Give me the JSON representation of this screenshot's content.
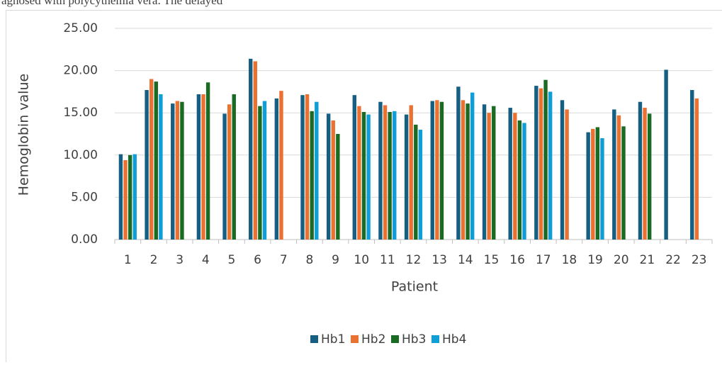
{
  "page_text": "agnosed with polycythemia vera. The delayed",
  "chart_data": {
    "type": "bar",
    "categories": [
      "1",
      "2",
      "3",
      "4",
      "5",
      "6",
      "7",
      "8",
      "9",
      "10",
      "11",
      "12",
      "13",
      "14",
      "15",
      "16",
      "17",
      "18",
      "19",
      "20",
      "21",
      "22",
      "23"
    ],
    "series": [
      {
        "name": "Hb1",
        "color": "#156082",
        "values": [
          10.1,
          17.7,
          16.1,
          17.2,
          14.9,
          21.4,
          16.7,
          17.1,
          14.9,
          17.1,
          16.3,
          14.8,
          16.4,
          18.1,
          16.0,
          15.6,
          18.2,
          16.5,
          12.7,
          15.4,
          16.3,
          20.1,
          17.7
        ]
      },
      {
        "name": "Hb2",
        "color": "#e97132",
        "values": [
          9.4,
          19.0,
          16.4,
          17.2,
          16.0,
          21.1,
          17.6,
          17.2,
          14.1,
          15.8,
          15.9,
          15.9,
          16.5,
          16.5,
          15.0,
          15.0,
          17.9,
          15.4,
          13.1,
          14.7,
          15.6,
          null,
          16.7
        ]
      },
      {
        "name": "Hb3",
        "color": "#196b24",
        "values": [
          10.0,
          18.7,
          16.3,
          18.6,
          17.2,
          15.8,
          null,
          15.2,
          12.5,
          15.1,
          15.1,
          13.6,
          16.3,
          16.1,
          15.8,
          14.1,
          18.9,
          null,
          13.3,
          13.4,
          14.9,
          null,
          null
        ]
      },
      {
        "name": "Hb4",
        "color": "#0f9ed5",
        "values": [
          10.1,
          17.2,
          null,
          null,
          null,
          16.4,
          null,
          16.3,
          null,
          14.8,
          15.2,
          13.0,
          null,
          17.4,
          null,
          13.8,
          17.5,
          null,
          12.0,
          null,
          null,
          null,
          null
        ]
      }
    ],
    "x_label": "Patient",
    "y_label": "Hemoglobin value",
    "ylim": [
      0,
      25
    ],
    "yticks": [
      {
        "value": 0,
        "label": "0.00"
      },
      {
        "value": 5,
        "label": "5.00"
      },
      {
        "value": 10,
        "label": "10.00"
      },
      {
        "value": 15,
        "label": "15.00"
      },
      {
        "value": 20,
        "label": "20.00"
      },
      {
        "value": 25,
        "label": "25.00"
      }
    ],
    "grid": true,
    "legend": "bottom"
  }
}
